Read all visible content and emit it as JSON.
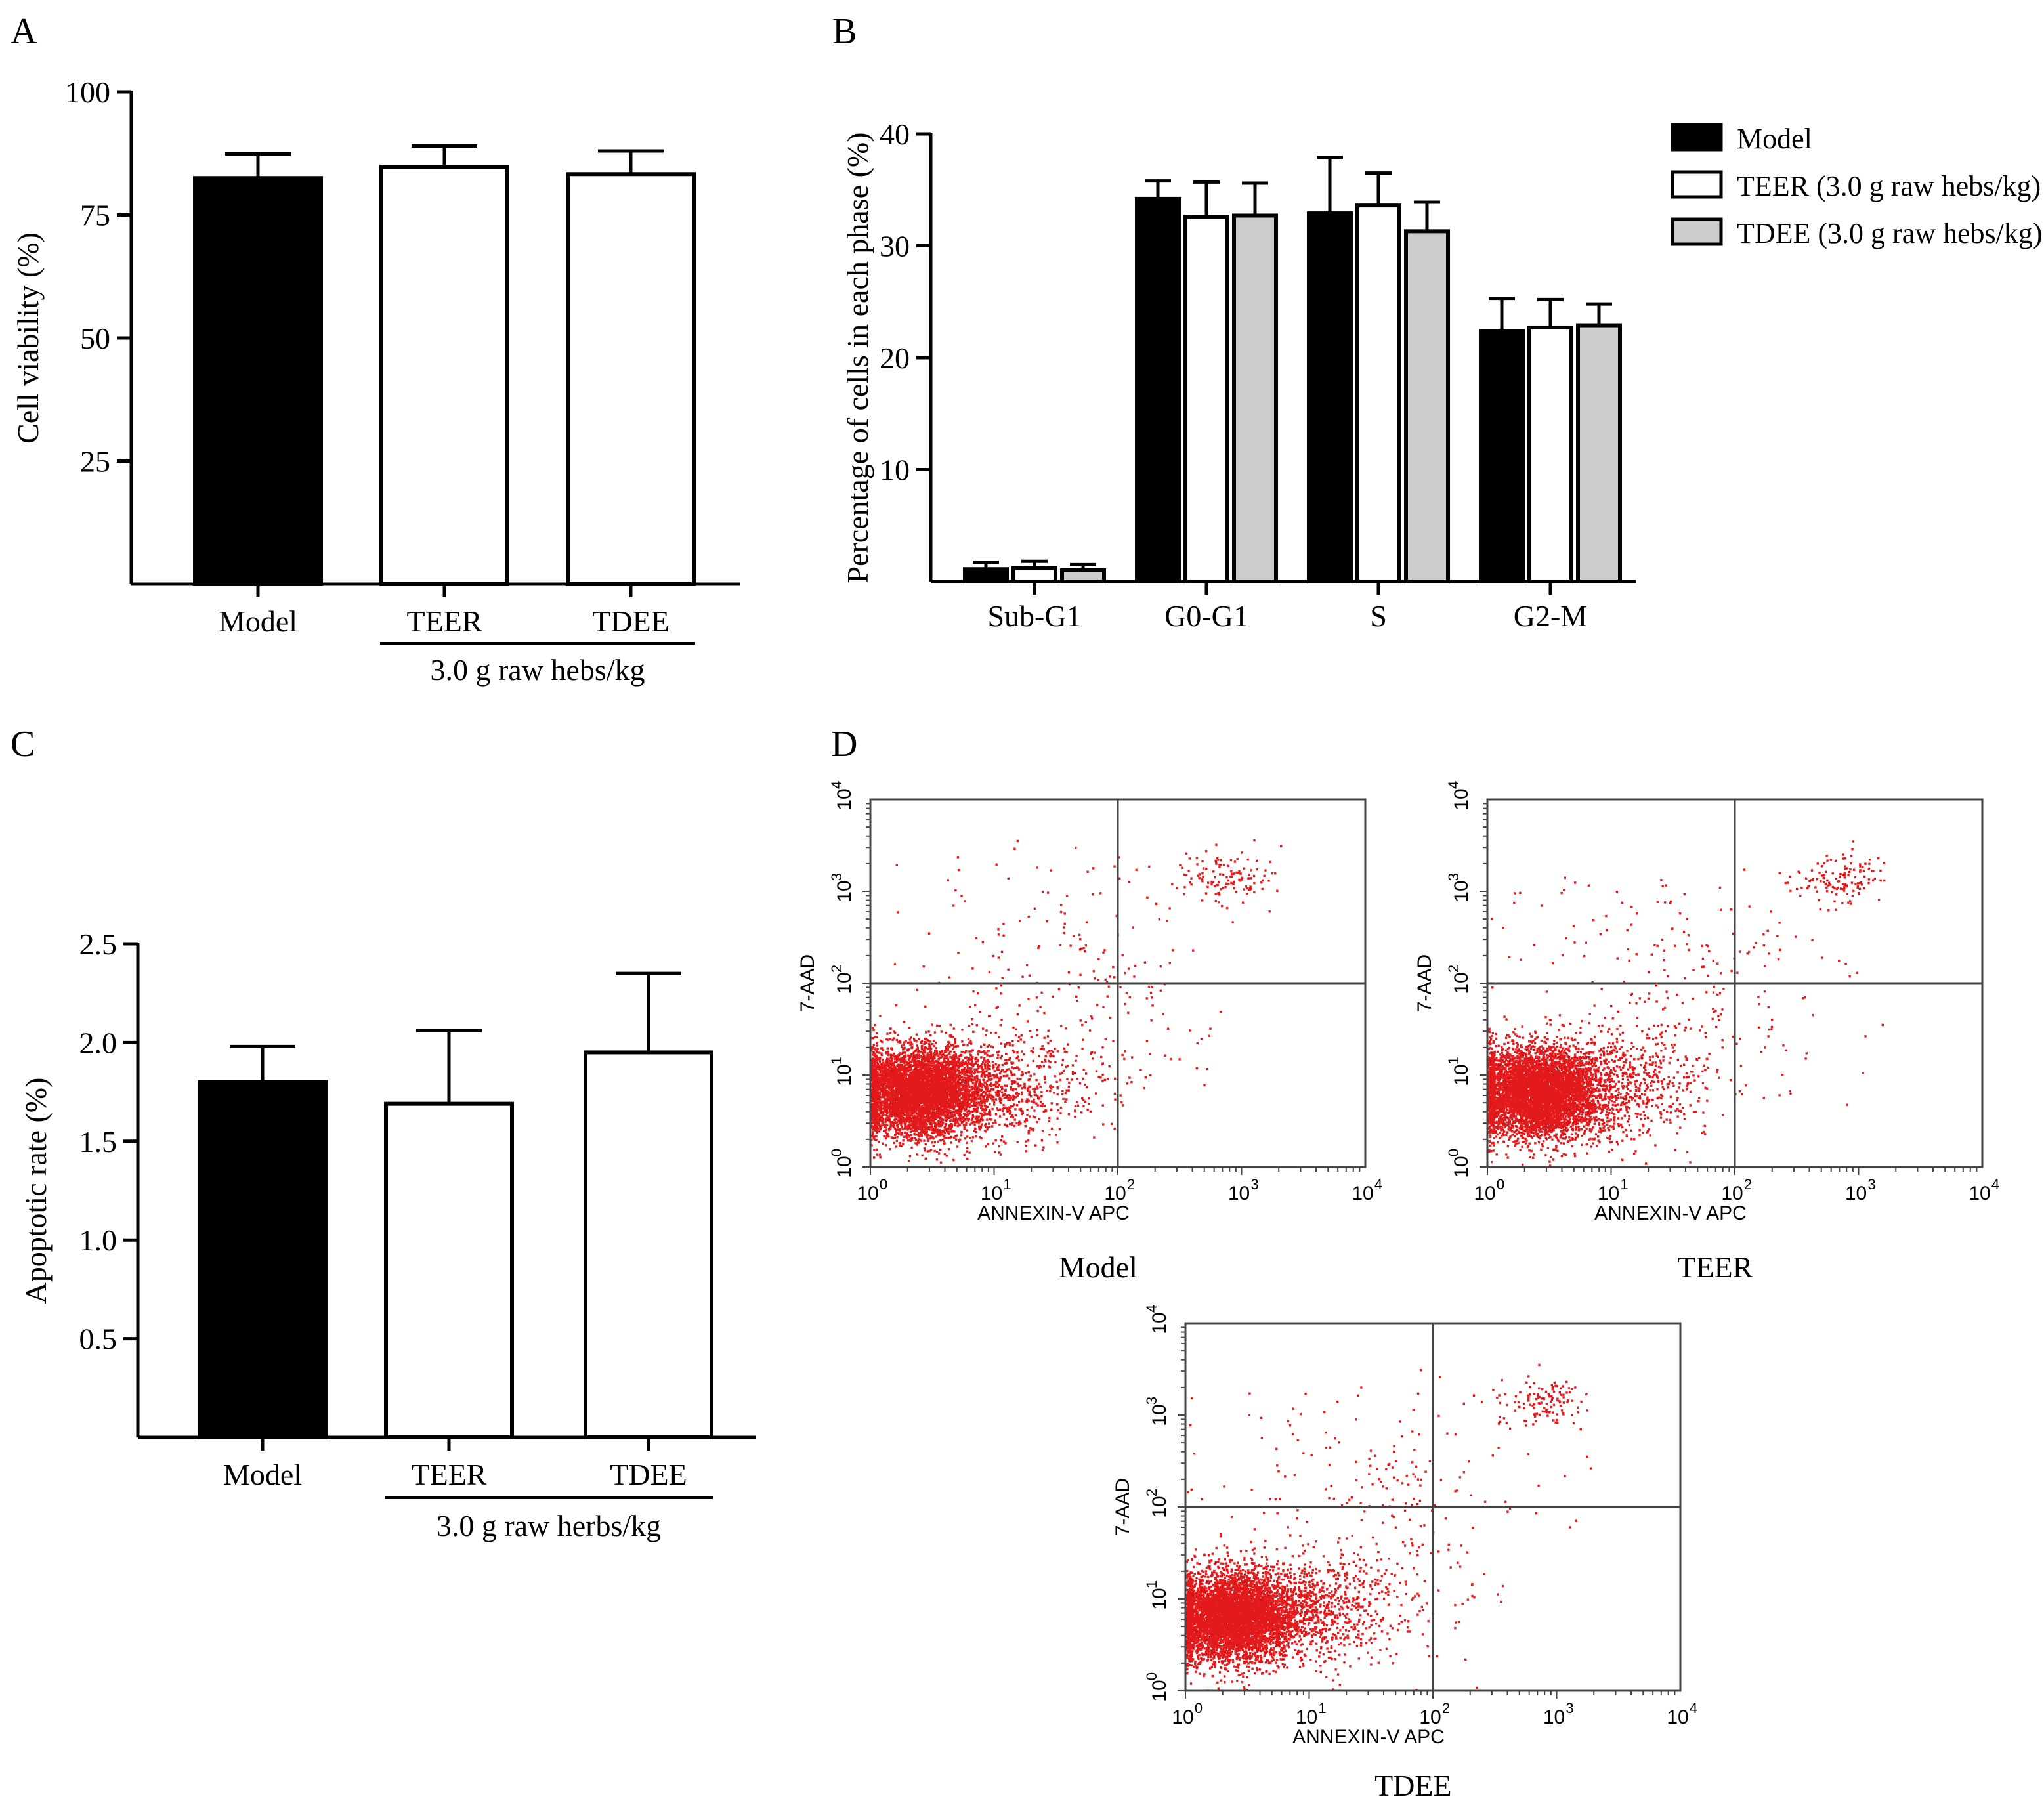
{
  "colors": {
    "model": "#000000",
    "teer": "#ffffff",
    "tdee": "#cccccc",
    "dots": "#e31a1c"
  },
  "chart_data": [
    {
      "id": "A",
      "panel_label": "A",
      "type": "bar",
      "ylabel": "Cell viability (%)",
      "ylim": [
        0,
        100
      ],
      "yticks": [
        25,
        50,
        75,
        100
      ],
      "categories": [
        "Model",
        "TEER",
        "TDEE"
      ],
      "values": [
        82.5,
        84.8,
        83.3
      ],
      "errors": [
        4.9,
        4.2,
        4.7
      ],
      "colors": [
        "#000000",
        "#ffffff",
        "#ffffff"
      ],
      "group_label": "3.0 g raw hebs/kg",
      "group_span": [
        1,
        2
      ]
    },
    {
      "id": "B",
      "panel_label": "B",
      "type": "bar",
      "ylabel": "Percentage of cells in each phase (%)",
      "ylim": [
        0,
        40
      ],
      "yticks": [
        10,
        20,
        30,
        40
      ],
      "categories": [
        "Sub-G1",
        "G0-G1",
        "S",
        "G2-M"
      ],
      "series": [
        {
          "name": "Model",
          "color": "#000000",
          "values": [
            1.1,
            34.2,
            32.9,
            22.4
          ],
          "errors": [
            0.6,
            1.6,
            5.0,
            2.9
          ]
        },
        {
          "name": "TEER (3.0 g raw hebs/kg)",
          "color": "#ffffff",
          "values": [
            1.2,
            32.6,
            33.6,
            22.7
          ],
          "errors": [
            0.6,
            3.1,
            2.9,
            2.5
          ]
        },
        {
          "name": "TDEE (3.0 g raw hebs/kg)",
          "color": "#cccccc",
          "values": [
            1.0,
            32.7,
            31.3,
            22.9
          ],
          "errors": [
            0.5,
            2.9,
            2.6,
            1.9
          ]
        }
      ],
      "legend": "top-right"
    },
    {
      "id": "C",
      "panel_label": "C",
      "type": "bar",
      "ylabel": "Apoptotic rate (%)",
      "ylim": [
        0,
        2.5
      ],
      "yticks": [
        0.5,
        1.0,
        1.5,
        2.0,
        2.5
      ],
      "ytick_labels": [
        "0.5",
        "1.0",
        "1.5",
        "2.0",
        "2.5"
      ],
      "categories": [
        "Model",
        "TEER",
        "TDEE"
      ],
      "values": [
        1.8,
        1.69,
        1.95
      ],
      "errors": [
        0.18,
        0.37,
        0.4
      ],
      "colors": [
        "#000000",
        "#ffffff",
        "#ffffff"
      ],
      "group_label": "3.0 g raw herbs/kg",
      "group_span": [
        1,
        2
      ]
    },
    {
      "id": "D",
      "panel_label": "D",
      "type": "scatter",
      "xlabel": "ANNEXIN-V APC",
      "ylabel": "7-AAD",
      "scale": "log",
      "xlim": [
        1,
        10000
      ],
      "ylim": [
        1,
        10000
      ],
      "tick_exponents": [
        "0",
        "1",
        "2",
        "3",
        "4"
      ],
      "gate": [
        100,
        100
      ],
      "plots": [
        {
          "name": "Model",
          "caption": "Model"
        },
        {
          "name": "TEER",
          "caption": "TEER"
        },
        {
          "name": "TDEE",
          "caption": "TDEE"
        }
      ]
    }
  ]
}
